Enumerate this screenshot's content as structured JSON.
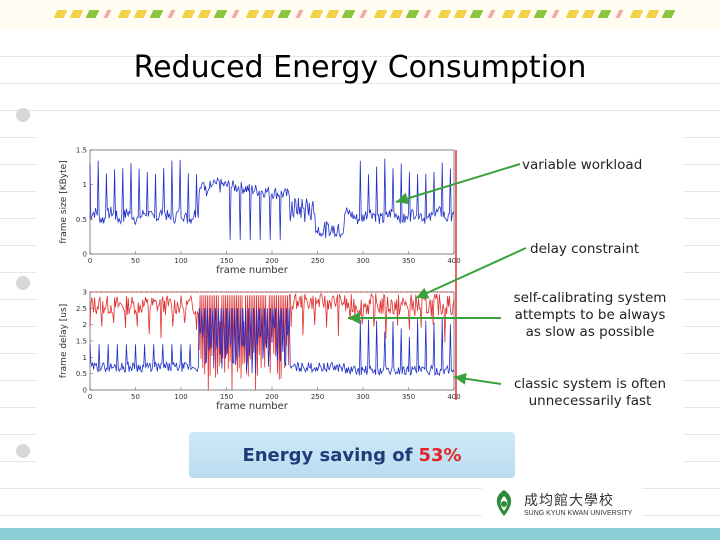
{
  "slide": {
    "title": "Reduced Energy Consumption"
  },
  "annotations": {
    "variable_workload": "variable workload",
    "delay_constraint": "delay constraint",
    "self_calibrating": [
      "self-calibrating system",
      "attempts to be always",
      "as slow as possible"
    ],
    "classic": [
      "classic system is often",
      "unnecessarily fast"
    ]
  },
  "callout": {
    "prefix": "Energy saving of",
    "percent": "53%"
  },
  "logo": {
    "korean": "成均館大學校",
    "english": "SUNG KYUN KWAN UNIVERSITY"
  },
  "chart_data": [
    {
      "type": "line",
      "title": "",
      "xlabel": "frame number",
      "ylabel": "frame size [KByte]",
      "xlim": [
        0,
        400
      ],
      "ylim": [
        0,
        1.5
      ],
      "x_ticks": [
        "0",
        "50",
        "100",
        "150",
        "200",
        "250",
        "300",
        "350",
        "400"
      ],
      "y_ticks": [
        "0",
        "0.5",
        "1",
        "1.5"
      ],
      "series": [
        {
          "name": "workload",
          "color": "#2030c8"
        }
      ]
    },
    {
      "type": "line",
      "title": "",
      "xlabel": "frame number",
      "ylabel": "frame delay [us]",
      "xlim": [
        0,
        400
      ],
      "ylim": [
        0,
        3
      ],
      "x_ticks": [
        "0",
        "50",
        "100",
        "150",
        "200",
        "250",
        "300",
        "350",
        "400"
      ],
      "y_ticks": [
        "0",
        "0.5",
        "1",
        "1.5",
        "2",
        "2.5",
        "3"
      ],
      "delay_constraint": 3,
      "series": [
        {
          "name": "self-calibrating",
          "color": "#e03030"
        },
        {
          "name": "classic",
          "color": "#2030c8"
        }
      ]
    }
  ]
}
